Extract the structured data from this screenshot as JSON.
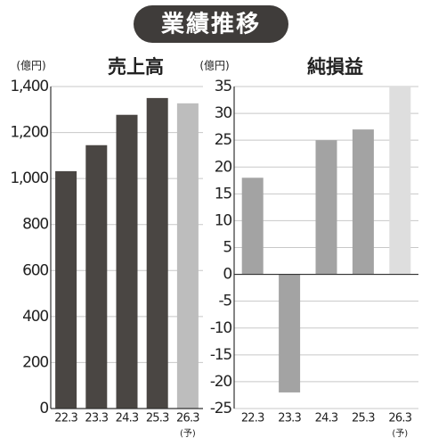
{
  "title": "業績推移",
  "chart_data": [
    {
      "type": "bar",
      "title": "売上高",
      "unit_label": "(億円)",
      "categories": [
        "22.3",
        "23.3",
        "24.3",
        "25.3",
        "26.3"
      ],
      "forecast_note": "(予)",
      "values": [
        1032,
        1145,
        1277,
        1350,
        1327
      ],
      "colors": [
        "#4a4643",
        "#4a4643",
        "#4a4643",
        "#4a4643",
        "#bdbdbd"
      ],
      "ylim": [
        0,
        1400
      ],
      "yticks": [
        0,
        200,
        400,
        600,
        800,
        {
          "value": 1000,
          "label": "1,000"
        },
        {
          "value": 1200,
          "label": "1,200"
        },
        {
          "value": 1400,
          "label": "1,400"
        }
      ],
      "grid": true
    },
    {
      "type": "bar",
      "title": "純損益",
      "unit_label": "(億円)",
      "categories": [
        "22.3",
        "23.3",
        "24.3",
        "25.3",
        "26.3"
      ],
      "forecast_note": "(予)",
      "values": [
        18,
        -22,
        25,
        27,
        35
      ],
      "colors": [
        "#a3a3a3",
        "#a3a3a3",
        "#a3a3a3",
        "#a3a3a3",
        "#dedede"
      ],
      "ylim": [
        -25,
        35
      ],
      "yticks": [
        -25,
        -20,
        -15,
        -10,
        -5,
        0,
        5,
        10,
        15,
        20,
        25,
        30,
        35
      ],
      "grid": true
    }
  ]
}
